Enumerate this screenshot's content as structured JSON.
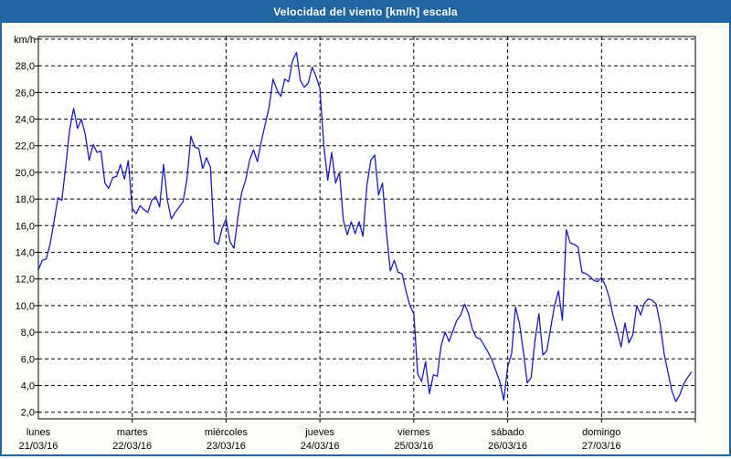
{
  "title": "Velocidad del viento [km/h] escala",
  "y_axis": {
    "unit_label": "km/h",
    "tick_labels": [
      "2,0",
      "4,0",
      "6,0",
      "8,0",
      "10,0",
      "12,0",
      "14,0",
      "16,0",
      "18,0",
      "20,0",
      "22,0",
      "24,0",
      "26,0",
      "28,0"
    ]
  },
  "colors": {
    "titlebar": "#2066a0",
    "window_border": "#2066a0",
    "page_background": "#fbfef7",
    "plot_background": "#ffffff",
    "gridline": "#000000",
    "axis_text": "#000000",
    "title_text": "#ffffff",
    "line": "#1a1acd"
  },
  "chart_data": {
    "type": "line",
    "title": "Velocidad del viento [km/h] escala",
    "xlabel": "",
    "ylabel": "km/h",
    "ylim": [
      1.5,
      30.2
    ],
    "y_grid": {
      "min": 2,
      "max": 30,
      "step": 2,
      "style": "dashed"
    },
    "x_grid": "dashed vertical line at each day boundary",
    "legend": "none",
    "x_unit": "one value per hour, 24 per day, 7 days (21/03/16 - 27/03/16)",
    "y_ticks": [
      {
        "value": 2,
        "label": "2,0"
      },
      {
        "value": 4,
        "label": "4,0"
      },
      {
        "value": 6,
        "label": "6,0"
      },
      {
        "value": 8,
        "label": "8,0"
      },
      {
        "value": 10,
        "label": "10,0"
      },
      {
        "value": 12,
        "label": "12,0"
      },
      {
        "value": 14,
        "label": "14,0"
      },
      {
        "value": 16,
        "label": "16,0"
      },
      {
        "value": 18,
        "label": "18,0"
      },
      {
        "value": 20,
        "label": "20,0"
      },
      {
        "value": 22,
        "label": "22,0"
      },
      {
        "value": 24,
        "label": "24,0"
      },
      {
        "value": 26,
        "label": "26,0"
      },
      {
        "value": 28,
        "label": "28,0"
      },
      {
        "value": 30,
        "label": ""
      }
    ],
    "days": [
      {
        "label": "lunes",
        "date": "21/03/16",
        "values": [
          12.7,
          13.4,
          13.5,
          14.6,
          16.3,
          18.1,
          17.9,
          20.5,
          23.2,
          24.8,
          23.3,
          24.0,
          22.8,
          20.9,
          22.1,
          21.5,
          21.6,
          19.2,
          18.8,
          19.6,
          19.7,
          20.6,
          19.5,
          20.9
        ]
      },
      {
        "label": "martes",
        "date": "22/03/16",
        "values": [
          17.3,
          16.9,
          17.5,
          17.2,
          17.0,
          17.9,
          18.2,
          17.4,
          20.6,
          17.9,
          16.5,
          17.0,
          17.4,
          17.8,
          19.5,
          22.7,
          21.9,
          21.8,
          20.3,
          21.1,
          20.4,
          14.8,
          14.6,
          15.8
        ]
      },
      {
        "label": "miércoles",
        "date": "23/03/16",
        "values": [
          16.5,
          14.8,
          14.3,
          16.6,
          18.5,
          19.4,
          20.9,
          21.7,
          20.8,
          22.3,
          23.6,
          24.9,
          27.0,
          26.2,
          25.7,
          27.0,
          26.8,
          28.4,
          29.0,
          26.9,
          26.4,
          26.7,
          27.9,
          27.2
        ]
      },
      {
        "label": "jueves",
        "date": "24/03/16",
        "values": [
          26.3,
          22.0,
          19.4,
          21.5,
          19.2,
          20.0,
          16.4,
          15.3,
          16.3,
          15.4,
          16.3,
          15.2,
          19.0,
          20.9,
          21.3,
          18.3,
          19.2,
          15.5,
          12.6,
          13.4,
          12.5,
          12.4,
          11.1,
          10.0
        ]
      },
      {
        "label": "viernes",
        "date": "25/03/16",
        "values": [
          9.4,
          4.9,
          4.3,
          5.8,
          3.4,
          4.8,
          4.7,
          7.0,
          8.0,
          7.3,
          8.1,
          8.9,
          9.3,
          10.1,
          9.4,
          8.2,
          7.6,
          7.5,
          7.0,
          6.5,
          5.9,
          5.1,
          4.3,
          2.9
        ]
      },
      {
        "label": "sábado",
        "date": "26/03/16",
        "values": [
          5.4,
          6.4,
          9.9,
          8.7,
          6.6,
          4.2,
          4.6,
          7.4,
          9.4,
          6.3,
          6.6,
          8.3,
          10.0,
          11.1,
          8.9,
          15.7,
          14.7,
          14.6,
          14.4,
          12.5,
          12.4,
          12.2,
          11.9,
          11.8
        ]
      },
      {
        "label": "domingo",
        "date": "27/03/16",
        "values": [
          12.1,
          11.5,
          10.6,
          9.2,
          8.1,
          6.9,
          8.7,
          7.2,
          7.8,
          10.0,
          9.3,
          10.2,
          10.5,
          10.4,
          10.1,
          8.6,
          6.4,
          5.0,
          3.6,
          2.8,
          3.3,
          4.1,
          4.6,
          5.0
        ]
      }
    ]
  }
}
